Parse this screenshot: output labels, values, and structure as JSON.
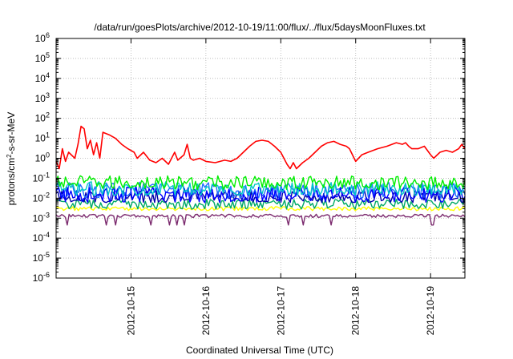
{
  "chart_data": {
    "type": "line",
    "title": "/data/run/goesPlots/archive/2012-10-19/11:00/flux/../flux/5daysMoonFluxes.txt",
    "xlabel": "Coordinated Universal Time (UTC)",
    "ylabel": {
      "prefix": "protons/cm",
      "superscript": "2",
      "suffix": "-s-sr-MeV"
    },
    "y_scale": "log",
    "ylim": [
      1e-06,
      1000000.0
    ],
    "y_ticks": [
      {
        "value": 1e-06,
        "base": "10",
        "exp": "-6"
      },
      {
        "value": 1e-05,
        "base": "10",
        "exp": "-5"
      },
      {
        "value": 0.0001,
        "base": "10",
        "exp": "-4"
      },
      {
        "value": 0.001,
        "base": "10",
        "exp": "-3"
      },
      {
        "value": 0.01,
        "base": "10",
        "exp": "-2"
      },
      {
        "value": 0.1,
        "base": "10",
        "exp": "-1"
      },
      {
        "value": 1,
        "base": "10",
        "exp": "0"
      },
      {
        "value": 10,
        "base": "10",
        "exp": "1"
      },
      {
        "value": 100,
        "base": "10",
        "exp": "2"
      },
      {
        "value": 1000,
        "base": "10",
        "exp": "3"
      },
      {
        "value": 10000,
        "base": "10",
        "exp": "4"
      },
      {
        "value": 100000,
        "base": "10",
        "exp": "5"
      },
      {
        "value": 1000000,
        "base": "10",
        "exp": "6"
      }
    ],
    "xlim": [
      "2012-10-14T00:00",
      "2012-10-19T11:00"
    ],
    "x_ticks": [
      "2012-10-15",
      "2012-10-16",
      "2012-10-17",
      "2012-10-18",
      "2012-10-19"
    ],
    "grid": true,
    "series": [
      {
        "color": "#ff0000",
        "points": [
          [
            "2012-10-14T00:00",
            0.7
          ],
          [
            "2012-10-14T01:00",
            0.3
          ],
          [
            "2012-10-14T02:00",
            3
          ],
          [
            "2012-10-14T03:00",
            0.7
          ],
          [
            "2012-10-14T04:00",
            2
          ],
          [
            "2012-10-14T06:00",
            1
          ],
          [
            "2012-10-14T07:00",
            5
          ],
          [
            "2012-10-14T08:00",
            40
          ],
          [
            "2012-10-14T09:00",
            30
          ],
          [
            "2012-10-14T10:00",
            3
          ],
          [
            "2012-10-14T11:00",
            8
          ],
          [
            "2012-10-14T12:00",
            1.5
          ],
          [
            "2012-10-14T13:00",
            6
          ],
          [
            "2012-10-14T14:00",
            1
          ],
          [
            "2012-10-14T15:00",
            20
          ],
          [
            "2012-10-14T17:00",
            15
          ],
          [
            "2012-10-14T19:00",
            10
          ],
          [
            "2012-10-14T21:00",
            5
          ],
          [
            "2012-10-14T23:00",
            3
          ],
          [
            "2012-10-15T01:00",
            2
          ],
          [
            "2012-10-15T02:00",
            1
          ],
          [
            "2012-10-15T04:00",
            2
          ],
          [
            "2012-10-15T06:00",
            0.8
          ],
          [
            "2012-10-15T08:00",
            0.6
          ],
          [
            "2012-10-15T10:00",
            1
          ],
          [
            "2012-10-15T12:00",
            0.5
          ],
          [
            "2012-10-15T14:00",
            2
          ],
          [
            "2012-10-15T15:00",
            0.8
          ],
          [
            "2012-10-15T17:00",
            1.5
          ],
          [
            "2012-10-15T18:00",
            5
          ],
          [
            "2012-10-15T19:00",
            1
          ],
          [
            "2012-10-15T20:00",
            0.8
          ],
          [
            "2012-10-15T22:00",
            1
          ],
          [
            "2012-10-16T00:00",
            0.7
          ],
          [
            "2012-10-16T03:00",
            0.6
          ],
          [
            "2012-10-16T06:00",
            0.8
          ],
          [
            "2012-10-16T08:00",
            0.7
          ],
          [
            "2012-10-16T10:00",
            1
          ],
          [
            "2012-10-16T12:00",
            2
          ],
          [
            "2012-10-16T14:00",
            4
          ],
          [
            "2012-10-16T16:00",
            7
          ],
          [
            "2012-10-16T18:00",
            8
          ],
          [
            "2012-10-16T20:00",
            7
          ],
          [
            "2012-10-16T22:00",
            4
          ],
          [
            "2012-10-17T00:00",
            2
          ],
          [
            "2012-10-17T02:00",
            0.5
          ],
          [
            "2012-10-17T03:00",
            0.3
          ],
          [
            "2012-10-17T04:00",
            0.6
          ],
          [
            "2012-10-17T05:00",
            0.3
          ],
          [
            "2012-10-17T07:00",
            0.6
          ],
          [
            "2012-10-17T09:00",
            1
          ],
          [
            "2012-10-17T11:00",
            2
          ],
          [
            "2012-10-17T13:00",
            4
          ],
          [
            "2012-10-17T15:00",
            6
          ],
          [
            "2012-10-17T17:00",
            7
          ],
          [
            "2012-10-17T19:00",
            5
          ],
          [
            "2012-10-17T21:00",
            4
          ],
          [
            "2012-10-17T22:00",
            3
          ],
          [
            "2012-10-18T00:00",
            0.7
          ],
          [
            "2012-10-18T02:00",
            1.5
          ],
          [
            "2012-10-18T04:00",
            2
          ],
          [
            "2012-10-18T07:00",
            3
          ],
          [
            "2012-10-18T10:00",
            4
          ],
          [
            "2012-10-18T13:00",
            6
          ],
          [
            "2012-10-18T15:00",
            5
          ],
          [
            "2012-10-18T16:00",
            6
          ],
          [
            "2012-10-18T17:00",
            4
          ],
          [
            "2012-10-18T18:00",
            3
          ],
          [
            "2012-10-18T20:00",
            3
          ],
          [
            "2012-10-18T22:00",
            4
          ],
          [
            "2012-10-19T00:00",
            1.5
          ],
          [
            "2012-10-19T01:00",
            1
          ],
          [
            "2012-10-19T03:00",
            2
          ],
          [
            "2012-10-19T05:00",
            2.5
          ],
          [
            "2012-10-19T07:00",
            2
          ],
          [
            "2012-10-19T09:00",
            3
          ],
          [
            "2012-10-19T10:00",
            5
          ],
          [
            "2012-10-19T11:00",
            3
          ]
        ]
      },
      {
        "color": "#00ee00",
        "level": 0.06,
        "noise": 0.35
      },
      {
        "color": "#00c8c8",
        "level": 0.03,
        "noise": 0.35
      },
      {
        "color": "#0000ff",
        "level": 0.015,
        "noise": 0.4
      },
      {
        "color": "#1e6eff",
        "level": 0.025,
        "noise": 0.4
      },
      {
        "color": "#0000aa",
        "level": 0.012,
        "noise": 0.3
      },
      {
        "color": "#00aa66",
        "level": 0.005,
        "noise": 0.25
      },
      {
        "color": "#ffff00",
        "level": 0.003,
        "noise": 0.1
      },
      {
        "color": "#7b2a6e",
        "level": 0.0013,
        "noise": 0.08
      }
    ]
  }
}
